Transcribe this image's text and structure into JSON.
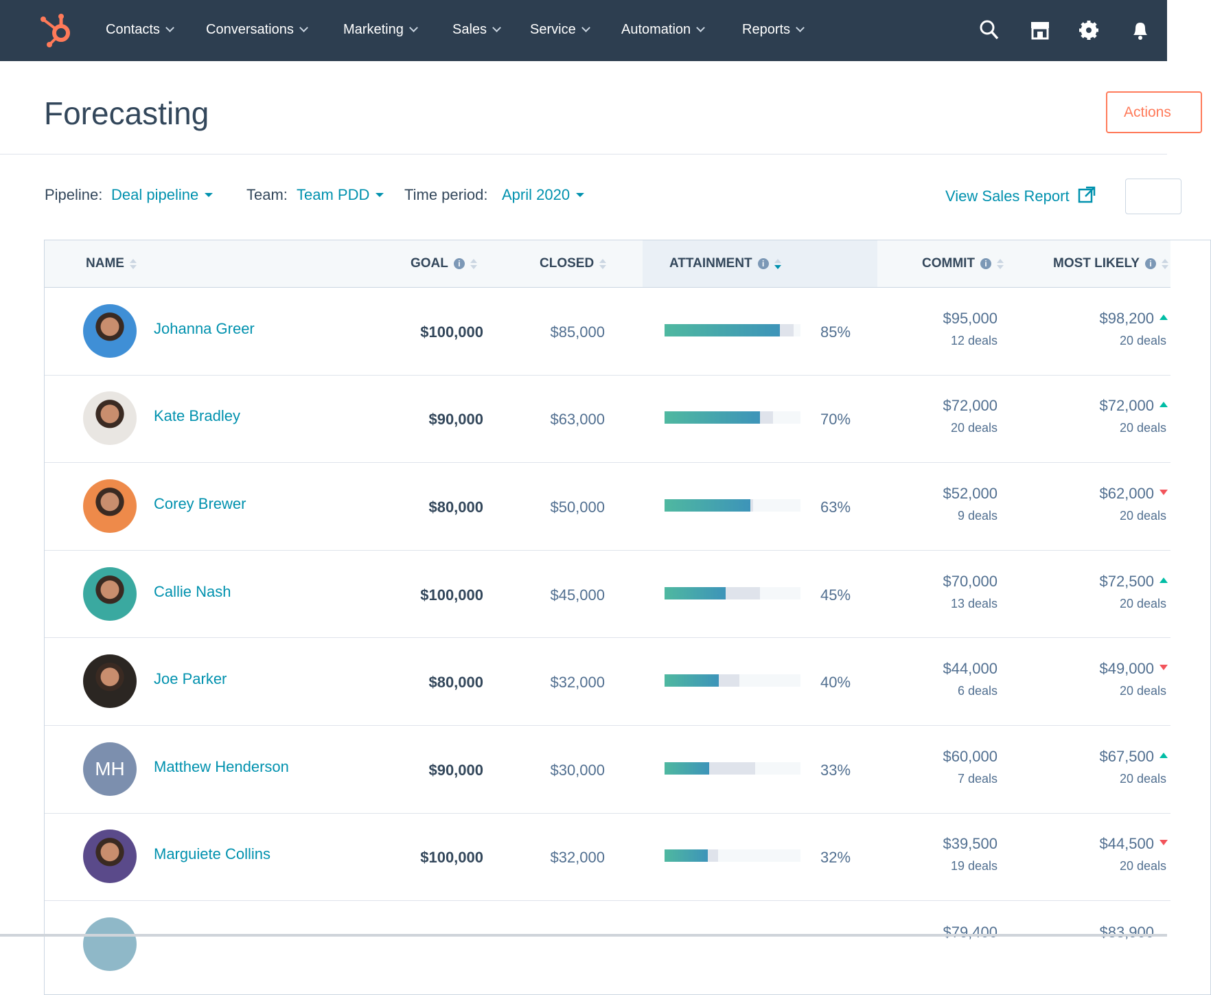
{
  "nav": {
    "items": [
      "Contacts",
      "Conversations",
      "Marketing",
      "Sales",
      "Service",
      "Automation",
      "Reports"
    ]
  },
  "header": {
    "title": "Forecasting",
    "action": "Actions"
  },
  "filters": [
    {
      "label": "Pipeline:",
      "value": "Deal pipeline"
    },
    {
      "label": "Team:",
      "value": "Team PDD"
    },
    {
      "label": "Time period:",
      "value": "April 2020"
    }
  ],
  "report_link": "View Sales Report",
  "table": {
    "columns": [
      "NAME",
      "GOAL",
      "CLOSED",
      "ATTAINMENT",
      "COMMIT",
      "MOST LIKELY"
    ],
    "rows": [
      {
        "name": "Johanna Greer",
        "goal": "$100,000",
        "closed": "$85,000",
        "attainment": "85%",
        "commit": "$95,000",
        "commit_deals": "12 deals",
        "most_likely": "$98,200",
        "most_likely_deals": "20 deals",
        "trend": "up",
        "avatar_color": "#3f8fd6"
      },
      {
        "name": "Kate Bradley",
        "goal": "$90,000",
        "closed": "$63,000",
        "attainment": "70%",
        "commit": "$72,000",
        "commit_deals": "20 deals",
        "most_likely": "$72,000",
        "most_likely_deals": "20 deals",
        "trend": "up",
        "avatar_color": "#e9e6e2"
      },
      {
        "name": "Corey Brewer",
        "goal": "$80,000",
        "closed": "$50,000",
        "attainment": "63%",
        "commit": "$52,000",
        "commit_deals": "9 deals",
        "most_likely": "$62,000",
        "most_likely_deals": "20 deals",
        "trend": "down",
        "avatar_color": "#ee8a4a"
      },
      {
        "name": "Callie Nash",
        "goal": "$100,000",
        "closed": "$45,000",
        "attainment": "45%",
        "commit": "$70,000",
        "commit_deals": "13 deals",
        "most_likely": "$72,500",
        "most_likely_deals": "20 deals",
        "trend": "up",
        "avatar_color": "#3aa9a0"
      },
      {
        "name": "Joe Parker",
        "goal": "$80,000",
        "closed": "$32,000",
        "attainment": "40%",
        "commit": "$44,000",
        "commit_deals": "6 deals",
        "most_likely": "$49,000",
        "most_likely_deals": "20 deals",
        "trend": "down",
        "avatar_color": "#2b2622"
      },
      {
        "name": "Matthew Henderson",
        "initials": "MH",
        "goal": "$90,000",
        "closed": "$30,000",
        "attainment": "33%",
        "commit": "$60,000",
        "commit_deals": "7 deals",
        "most_likely": "$67,500",
        "most_likely_deals": "20 deals",
        "trend": "up",
        "avatar_color": "#7c8fae"
      },
      {
        "name": "Marguiete Collins",
        "goal": "$100,000",
        "closed": "$32,000",
        "attainment": "32%",
        "commit": "$39,500",
        "commit_deals": "19 deals",
        "most_likely": "$44,500",
        "most_likely_deals": "20 deals",
        "trend": "down",
        "avatar_color": "#5a4a8a"
      }
    ],
    "partial_row": {
      "commit": "$79,400",
      "most_likely": "$83,900"
    }
  }
}
